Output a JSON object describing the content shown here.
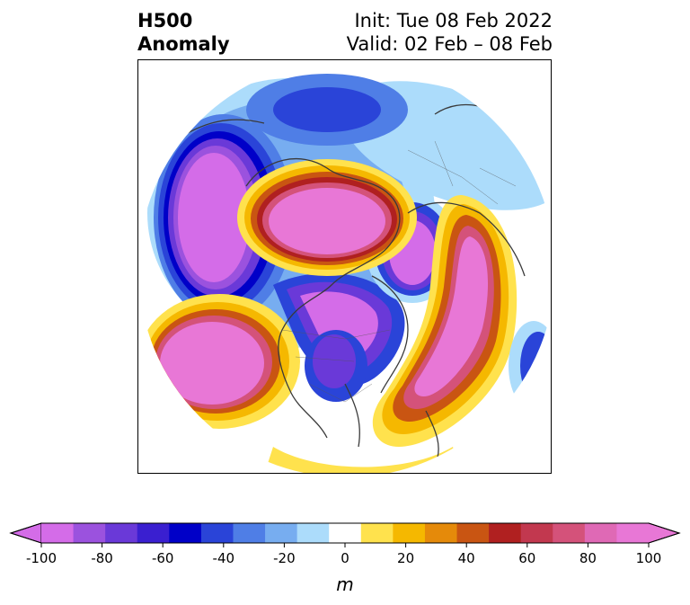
{
  "title": {
    "left_line1": "H500",
    "left_line2": "Anomaly",
    "right_line1": "Init: Tue 08 Feb 2022",
    "right_line2": "Valid: 02 Feb – 08 Feb"
  },
  "colorbar": {
    "unit": "m",
    "levels": [
      -100,
      -90,
      -80,
      -70,
      -60,
      -50,
      -40,
      -30,
      -20,
      -10,
      10,
      20,
      30,
      40,
      50,
      60,
      70,
      80,
      90,
      100
    ],
    "tick_values": [
      -100,
      -80,
      -60,
      -40,
      -20,
      0,
      20,
      40,
      60,
      80,
      100
    ],
    "tick_labels": [
      "-100",
      "-80",
      "-60",
      "-40",
      "-20",
      "0",
      "20",
      "40",
      "60",
      "80",
      "100"
    ],
    "colors": [
      "#d46ce8",
      "#9b52de",
      "#6a39d8",
      "#3a1fd0",
      "#0000c8",
      "#2a44d8",
      "#4f7ee6",
      "#77adf0",
      "#acdcfb",
      "#ffffff",
      "#ffe24d",
      "#f5b800",
      "#e58a0a",
      "#c95512",
      "#b02020",
      "#c2384f",
      "#d4527a",
      "#df69b5",
      "#e877d6"
    ],
    "extend_low_color": "#d46ce8",
    "extend_high_color": "#e877d6"
  }
}
